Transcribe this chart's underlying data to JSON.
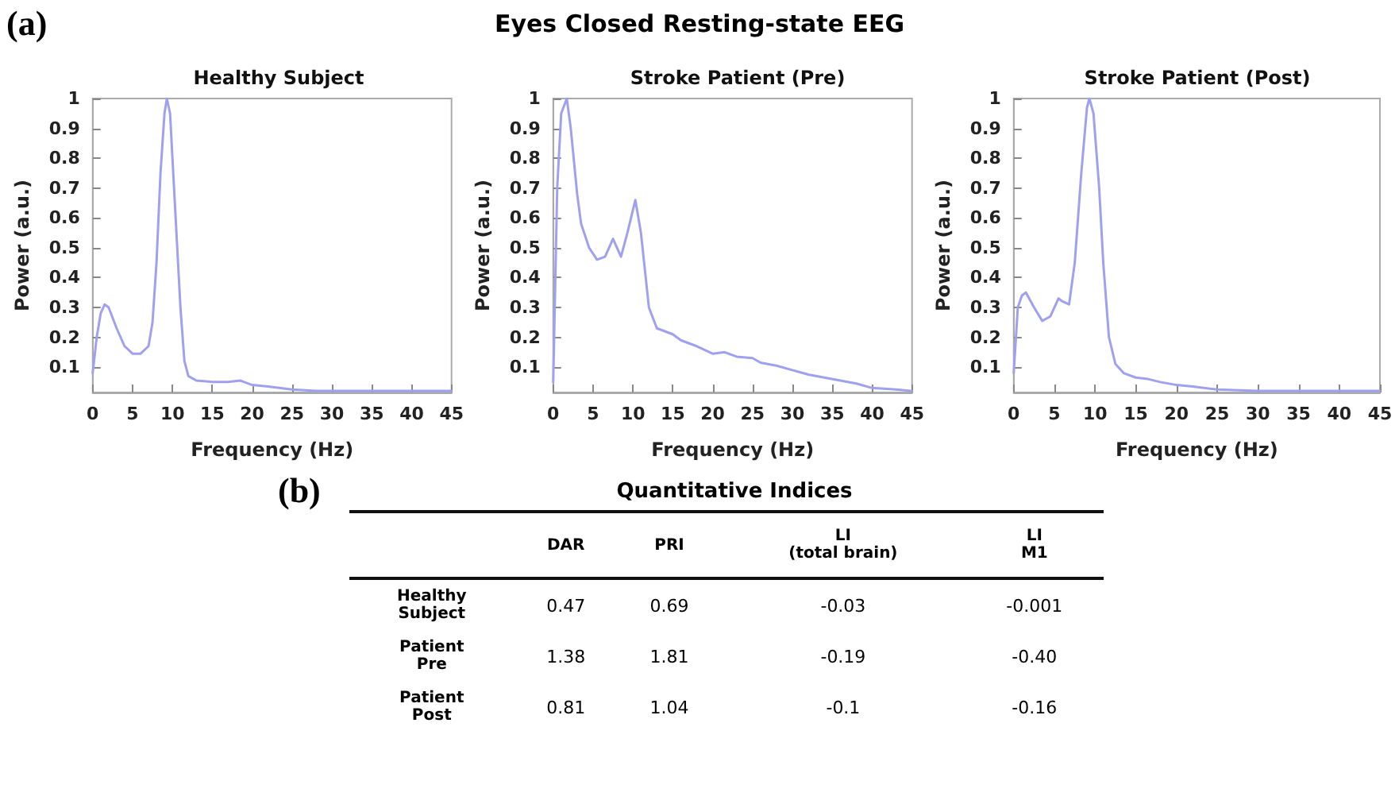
{
  "chart_data": [
    {
      "type": "line",
      "title": "Healthy Subject",
      "xlabel": "Frequency (Hz)",
      "ylabel": "Power (a.u.)",
      "annotations": [
        "(a)",
        "Eyes Closed Resting-state EEG"
      ],
      "xlim": [
        0,
        45
      ],
      "xticks": [
        0,
        5,
        10,
        15,
        20,
        25,
        30,
        35,
        40,
        45
      ],
      "ylim": [
        0.015,
        1
      ],
      "yticks": [
        0.1,
        0.2,
        0.3,
        0.4,
        0.5,
        0.6,
        0.7,
        0.8,
        0.9,
        1
      ],
      "grid": false,
      "marker": "none",
      "line_style": "solid",
      "series": [
        {
          "color": "#a0a0f0",
          "x": [
            0,
            0.5,
            1,
            1.5,
            2,
            3,
            4,
            5,
            6,
            7,
            7.5,
            8,
            8.5,
            9,
            9.3,
            9.7,
            10,
            10.5,
            11,
            11.5,
            12,
            13,
            15,
            17,
            18.5,
            19,
            20,
            22,
            25,
            28,
            30,
            35,
            40,
            45
          ],
          "values": [
            0.08,
            0.2,
            0.28,
            0.31,
            0.3,
            0.23,
            0.17,
            0.145,
            0.145,
            0.17,
            0.25,
            0.45,
            0.75,
            0.95,
            1.0,
            0.95,
            0.8,
            0.55,
            0.3,
            0.12,
            0.07,
            0.055,
            0.05,
            0.05,
            0.055,
            0.05,
            0.04,
            0.035,
            0.025,
            0.02,
            0.02,
            0.02,
            0.02,
            0.02
          ]
        }
      ]
    },
    {
      "type": "line",
      "title": "Stroke Patient (Pre)",
      "xlabel": "Frequency (Hz)",
      "ylabel": "Power (a.u.)",
      "xlim": [
        0,
        45
      ],
      "xticks": [
        0,
        5,
        10,
        15,
        20,
        25,
        30,
        35,
        40,
        45
      ],
      "ylim": [
        0.015,
        1
      ],
      "yticks": [
        0.1,
        0.2,
        0.3,
        0.4,
        0.5,
        0.6,
        0.7,
        0.8,
        0.9,
        1
      ],
      "grid": false,
      "marker": "none",
      "line_style": "solid",
      "series": [
        {
          "color": "#a0a0f0",
          "x": [
            0,
            0.5,
            1,
            1.7,
            2.2,
            3,
            3.5,
            4.5,
            5.5,
            6.5,
            7.5,
            8.5,
            9.3,
            10.3,
            11,
            12,
            13,
            14,
            15,
            16,
            18,
            20,
            21.5,
            23,
            25,
            26,
            28,
            30,
            32,
            34,
            36,
            38,
            40,
            43,
            45
          ],
          "values": [
            0.05,
            0.7,
            0.95,
            1.0,
            0.9,
            0.68,
            0.58,
            0.5,
            0.46,
            0.47,
            0.53,
            0.47,
            0.55,
            0.66,
            0.55,
            0.3,
            0.23,
            0.22,
            0.21,
            0.19,
            0.17,
            0.145,
            0.15,
            0.135,
            0.13,
            0.115,
            0.105,
            0.09,
            0.075,
            0.065,
            0.055,
            0.045,
            0.03,
            0.025,
            0.02
          ]
        }
      ]
    },
    {
      "type": "line",
      "title": "Stroke Patient (Post)",
      "xlabel": "Frequency (Hz)",
      "ylabel": "Power (a.u.)",
      "xlim": [
        0,
        45
      ],
      "xticks": [
        0,
        5,
        10,
        15,
        20,
        25,
        30,
        35,
        40,
        45
      ],
      "ylim": [
        0.015,
        1
      ],
      "yticks": [
        0.1,
        0.2,
        0.3,
        0.4,
        0.5,
        0.6,
        0.7,
        0.8,
        0.9,
        1
      ],
      "grid": false,
      "marker": "none",
      "line_style": "solid",
      "series": [
        {
          "color": "#a0a0f0",
          "x": [
            0,
            0.5,
            1,
            1.5,
            2.5,
            3.5,
            4.5,
            5.5,
            6,
            6.8,
            7.5,
            8.3,
            9,
            9.3,
            9.8,
            10.5,
            11,
            11.7,
            12.5,
            13.5,
            15,
            16.5,
            18,
            20,
            22,
            25,
            30,
            35,
            45
          ],
          "values": [
            0.08,
            0.3,
            0.34,
            0.35,
            0.3,
            0.255,
            0.27,
            0.33,
            0.32,
            0.31,
            0.45,
            0.75,
            0.97,
            1.0,
            0.95,
            0.7,
            0.45,
            0.2,
            0.11,
            0.08,
            0.065,
            0.06,
            0.05,
            0.04,
            0.035,
            0.025,
            0.02,
            0.02,
            0.02
          ]
        }
      ]
    },
    {
      "type": "other",
      "title": "Quantitative Indices",
      "annotations": [
        "(b)"
      ],
      "categories": [
        "DAR",
        "PRI",
        "LI\n(total brain)",
        "LI\nM1"
      ],
      "y_categories": [
        "Healthy\nSubject",
        "Patient\nPre",
        "Patient\nPost"
      ],
      "cell_labels": [
        [
          "0.47",
          "0.69",
          "-0.03",
          "-0.001"
        ],
        [
          "1.38",
          "1.81",
          "-0.19",
          "-0.40"
        ],
        [
          "0.81",
          "1.04",
          "-0.1",
          "-0.16"
        ]
      ]
    }
  ]
}
